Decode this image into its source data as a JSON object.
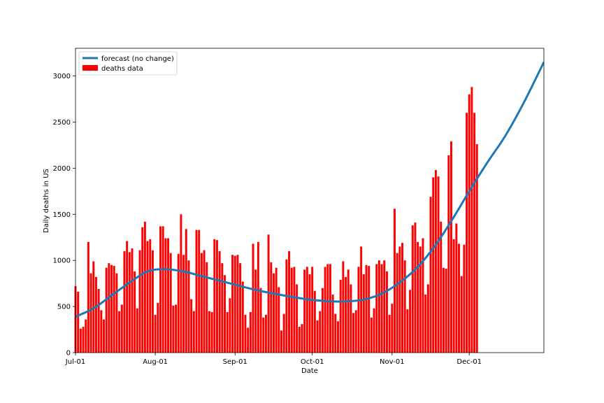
{
  "chart_data": {
    "type": "bar",
    "xlabel": "Date",
    "ylabel": "Daily deaths in US",
    "x_start": "2020-07-01",
    "x_end": "2020-12-30",
    "ylim": [
      0,
      3300
    ],
    "x_ticks": [
      {
        "date": "2020-07-01",
        "label": "Jul-01"
      },
      {
        "date": "2020-08-01",
        "label": "Aug-01"
      },
      {
        "date": "2020-09-01",
        "label": "Sep-01"
      },
      {
        "date": "2020-10-01",
        "label": "Oct-01"
      },
      {
        "date": "2020-11-01",
        "label": "Nov-01"
      },
      {
        "date": "2020-12-01",
        "label": "Dec-01"
      }
    ],
    "y_ticks": [
      0,
      500,
      1000,
      1500,
      2000,
      2500,
      3000
    ],
    "legend_position": "top-left",
    "grid": false,
    "series": [
      {
        "name": "deaths data",
        "kind": "bar",
        "color": "#ff0000",
        "start_date": "2020-07-01",
        "values": [
          720,
          660,
          260,
          280,
          360,
          1200,
          860,
          990,
          820,
          690,
          460,
          360,
          920,
          970,
          950,
          940,
          860,
          450,
          520,
          1100,
          1210,
          1090,
          1130,
          880,
          480,
          1110,
          1360,
          1420,
          1210,
          1230,
          1110,
          410,
          540,
          1370,
          1370,
          1240,
          1240,
          1080,
          510,
          520,
          1070,
          1500,
          1060,
          1340,
          1000,
          580,
          450,
          1330,
          1330,
          1080,
          1110,
          980,
          450,
          440,
          1230,
          1220,
          1100,
          970,
          840,
          440,
          590,
          1060,
          1050,
          1060,
          970,
          770,
          410,
          270,
          440,
          1180,
          900,
          1200,
          700,
          380,
          410,
          1280,
          980,
          860,
          920,
          710,
          240,
          420,
          1010,
          1100,
          920,
          930,
          740,
          280,
          310,
          900,
          930,
          850,
          930,
          670,
          350,
          450,
          700,
          930,
          960,
          960,
          630,
          420,
          340,
          790,
          990,
          820,
          900,
          740,
          430,
          460,
          930,
          1150,
          850,
          950,
          940,
          380,
          480,
          960,
          1000,
          960,
          1000,
          880,
          410,
          530,
          1560,
          1080,
          1150,
          1190,
          1000,
          470,
          680,
          1380,
          1410,
          1200,
          1150,
          1240,
          630,
          740,
          1690,
          1900,
          1980,
          1910,
          1420,
          920,
          910,
          2140,
          2290,
          1230,
          1400,
          1180,
          830,
          1170,
          2600,
          2800,
          2880,
          2600,
          2260
        ]
      },
      {
        "name": "forecast (no change)",
        "kind": "line",
        "color": "#1f77b4",
        "points": [
          {
            "date": "2020-07-01",
            "value": 390
          },
          {
            "date": "2020-07-08",
            "value": 480
          },
          {
            "date": "2020-07-15",
            "value": 620
          },
          {
            "date": "2020-07-22",
            "value": 760
          },
          {
            "date": "2020-07-29",
            "value": 880
          },
          {
            "date": "2020-08-05",
            "value": 905
          },
          {
            "date": "2020-08-12",
            "value": 880
          },
          {
            "date": "2020-08-19",
            "value": 830
          },
          {
            "date": "2020-08-26",
            "value": 780
          },
          {
            "date": "2020-09-02",
            "value": 730
          },
          {
            "date": "2020-09-09",
            "value": 680
          },
          {
            "date": "2020-09-16",
            "value": 640
          },
          {
            "date": "2020-09-23",
            "value": 605
          },
          {
            "date": "2020-09-30",
            "value": 575
          },
          {
            "date": "2020-10-07",
            "value": 558
          },
          {
            "date": "2020-10-14",
            "value": 555
          },
          {
            "date": "2020-10-21",
            "value": 575
          },
          {
            "date": "2020-10-28",
            "value": 640
          },
          {
            "date": "2020-11-04",
            "value": 760
          },
          {
            "date": "2020-11-11",
            "value": 930
          },
          {
            "date": "2020-11-18",
            "value": 1170
          },
          {
            "date": "2020-11-25",
            "value": 1470
          },
          {
            "date": "2020-12-01",
            "value": 1750
          },
          {
            "date": "2020-12-08",
            "value": 2060
          },
          {
            "date": "2020-12-15",
            "value": 2350
          },
          {
            "date": "2020-12-22",
            "value": 2700
          },
          {
            "date": "2020-12-30",
            "value": 3150
          }
        ]
      }
    ]
  }
}
